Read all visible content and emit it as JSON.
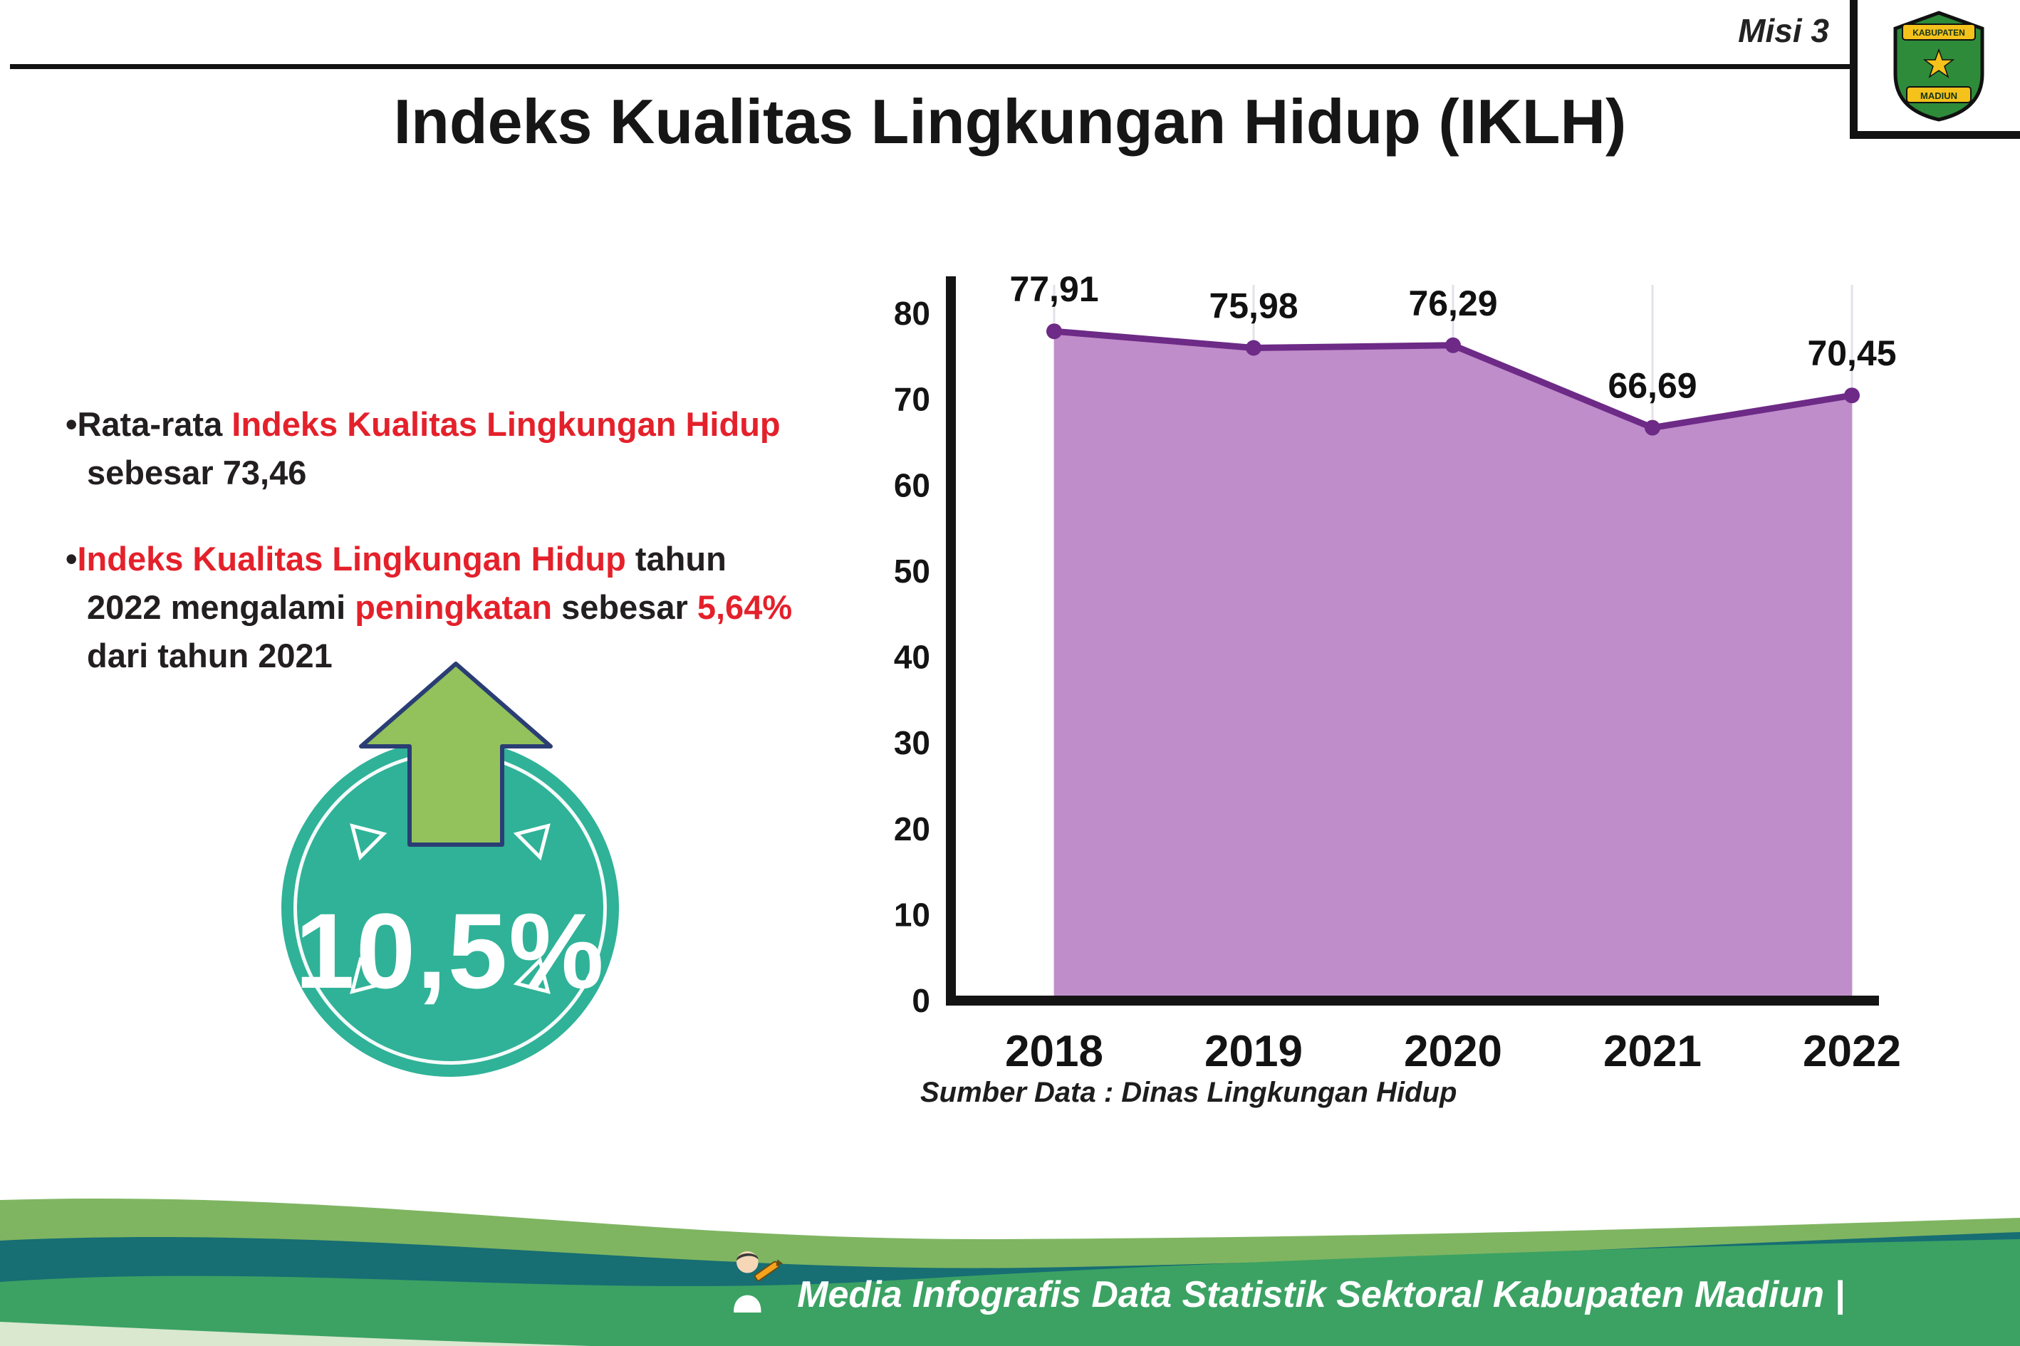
{
  "header": {
    "misi_label": "Misi 3",
    "title": "Indeks Kualitas Lingkungan Hidup (IKLH)",
    "logo": {
      "top_text": "KABUPATEN",
      "bottom_text": "MADIUN"
    }
  },
  "bullets": [
    {
      "segments": [
        {
          "text": "Rata-rata ",
          "red": false
        },
        {
          "text": "Indeks Kualitas Lingkungan Hidup",
          "red": true
        },
        {
          "text": " sebesar 73,46",
          "red": false
        }
      ]
    },
    {
      "segments": [
        {
          "text": "Indeks Kualitas Lingkungan Hidup",
          "red": true
        },
        {
          "text": " tahun 2022 mengalami ",
          "red": false
        },
        {
          "text": "peningkatan",
          "red": true
        },
        {
          "text": " sebesar ",
          "red": false
        },
        {
          "text": "5,64%",
          "red": true
        },
        {
          "text": " dari tahun 2021",
          "red": false
        }
      ]
    }
  ],
  "badge": {
    "value": "10,5%"
  },
  "chart_data": {
    "type": "area",
    "title": "Indeks Kualitas Lingkungan Hidup (IKLH)",
    "categories": [
      "2018",
      "2019",
      "2020",
      "2021",
      "2022"
    ],
    "values": [
      77.91,
      75.98,
      76.29,
      66.69,
      70.45
    ],
    "value_labels": [
      "77,91",
      "75,98",
      "76,29",
      "66,69",
      "70,45"
    ],
    "ylim": [
      0,
      80
    ],
    "ytick_step": 10,
    "grid": "faint-vertical",
    "legend": "none",
    "line_color": "#6d2a86",
    "fill_color": "#bf8dca",
    "source": "Sumber Data : Dinas Lingkungan Hidup"
  },
  "colors": {
    "accent_red": "#e4212b",
    "badge_teal": "#2fb298",
    "arrow_green": "#93c15c",
    "wave_green": "#3ba263",
    "wave_teal": "#176e73",
    "wave_sage": "#7fb561"
  },
  "footer": {
    "text": "Media Infografis Data Statistik Sektoral Kabupaten Madiun |"
  }
}
